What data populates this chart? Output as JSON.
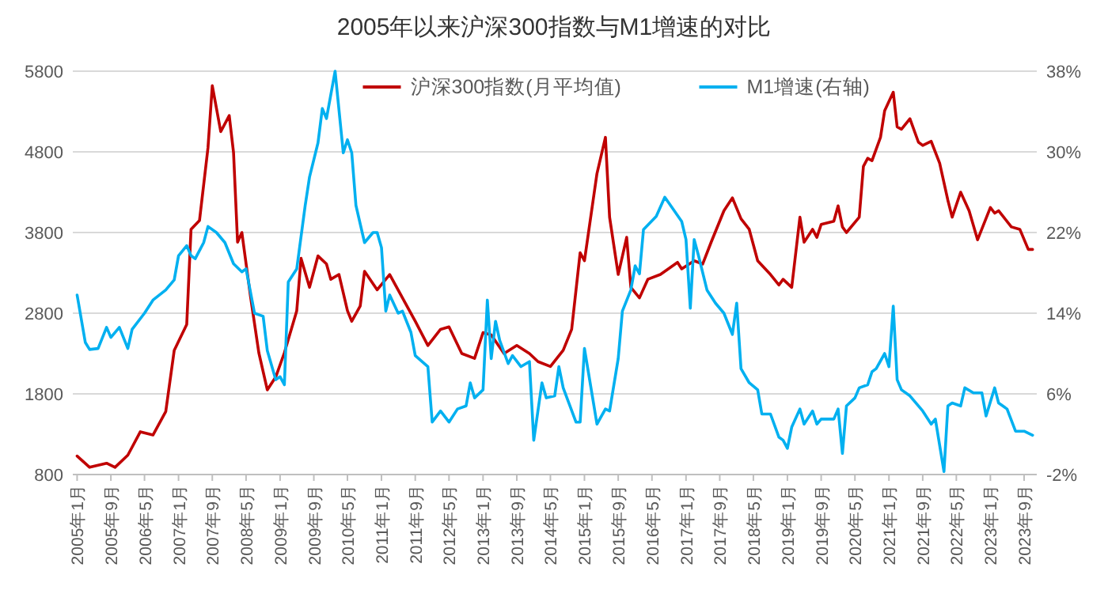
{
  "chart_data": {
    "type": "line",
    "title": "2005年以来沪深300指数与M1增速的对比",
    "xlim": [
      "2004-12",
      "2023-12"
    ],
    "xticks": [
      {
        "value": "2005-01",
        "label": "2005年1月"
      },
      {
        "value": "2005-09",
        "label": "2005年9月"
      },
      {
        "value": "2006-05",
        "label": "2006年5月"
      },
      {
        "value": "2007-01",
        "label": "2007年1月"
      },
      {
        "value": "2007-09",
        "label": "2007年9月"
      },
      {
        "value": "2008-05",
        "label": "2008年5月"
      },
      {
        "value": "2009-01",
        "label": "2009年1月"
      },
      {
        "value": "2009-09",
        "label": "2009年9月"
      },
      {
        "value": "2010-05",
        "label": "2010年5月"
      },
      {
        "value": "2011-01",
        "label": "2011年1月"
      },
      {
        "value": "2011-09",
        "label": "2011年9月"
      },
      {
        "value": "2012-05",
        "label": "2012年5月"
      },
      {
        "value": "2013-01",
        "label": "2013年1月"
      },
      {
        "value": "2013-09",
        "label": "2013年9月"
      },
      {
        "value": "2014-05",
        "label": "2014年5月"
      },
      {
        "value": "2015-01",
        "label": "2015年1月"
      },
      {
        "value": "2015-09",
        "label": "2015年9月"
      },
      {
        "value": "2016-05",
        "label": "2016年5月"
      },
      {
        "value": "2017-01",
        "label": "2017年1月"
      },
      {
        "value": "2017-09",
        "label": "2017年9月"
      },
      {
        "value": "2018-05",
        "label": "2018年5月"
      },
      {
        "value": "2019-01",
        "label": "2019年1月"
      },
      {
        "value": "2019-09",
        "label": "2019年9月"
      },
      {
        "value": "2020-05",
        "label": "2020年5月"
      },
      {
        "value": "2021-01",
        "label": "2021年1月"
      },
      {
        "value": "2021-09",
        "label": "2021年9月"
      },
      {
        "value": "2022-05",
        "label": "2022年5月"
      },
      {
        "value": "2023-01",
        "label": "2023年1月"
      },
      {
        "value": "2023-09",
        "label": "2023年9月"
      }
    ],
    "ylim": [
      800,
      5800
    ],
    "yticks": [
      800,
      1800,
      2800,
      3800,
      4800,
      5800
    ],
    "y2lim": [
      -2,
      38
    ],
    "y2ticks": [
      {
        "value": -2,
        "label": "-2%"
      },
      {
        "value": 6,
        "label": "6%"
      },
      {
        "value": 14,
        "label": "14%"
      },
      {
        "value": 22,
        "label": "22%"
      },
      {
        "value": 30,
        "label": "30%"
      },
      {
        "value": 38,
        "label": "38%"
      }
    ],
    "grid": "y",
    "legend": "top",
    "marker": "none",
    "line_style": "solid",
    "series": [
      {
        "name": "沪深300指数(月平均值)",
        "color": "#c00000",
        "x": [
          "2005-01",
          "2005-04",
          "2005-08",
          "2005-10",
          "2006-01",
          "2006-04",
          "2006-07",
          "2006-10",
          "2006-12",
          "2007-03",
          "2007-04",
          "2007-06",
          "2007-08",
          "2007-09",
          "2007-11",
          "2008-01",
          "2008-02",
          "2008-03",
          "2008-04",
          "2008-06",
          "2008-08",
          "2008-10",
          "2008-12",
          "2009-02",
          "2009-05",
          "2009-06",
          "2009-08",
          "2009-10",
          "2009-12",
          "2010-01",
          "2010-03",
          "2010-05",
          "2010-06",
          "2010-08",
          "2010-09",
          "2010-12",
          "2011-03",
          "2011-06",
          "2011-09",
          "2011-12",
          "2012-03",
          "2012-05",
          "2012-08",
          "2012-11",
          "2013-01",
          "2013-03",
          "2013-06",
          "2013-09",
          "2013-12",
          "2014-02",
          "2014-05",
          "2014-08",
          "2014-10",
          "2014-12",
          "2015-01",
          "2015-04",
          "2015-06",
          "2015-07",
          "2015-09",
          "2015-11",
          "2015-12",
          "2016-02",
          "2016-04",
          "2016-07",
          "2016-11",
          "2016-12",
          "2017-03",
          "2017-05",
          "2017-07",
          "2017-10",
          "2017-12",
          "2018-02",
          "2018-04",
          "2018-06",
          "2018-09",
          "2018-11",
          "2018-12",
          "2019-02",
          "2019-04",
          "2019-05",
          "2019-07",
          "2019-08",
          "2019-09",
          "2019-12",
          "2020-01",
          "2020-02",
          "2020-03",
          "2020-06",
          "2020-07",
          "2020-08",
          "2020-09",
          "2020-11",
          "2020-12",
          "2021-02",
          "2021-03",
          "2021-04",
          "2021-06",
          "2021-08",
          "2021-09",
          "2021-11",
          "2022-01",
          "2022-03",
          "2022-04",
          "2022-06",
          "2022-08",
          "2022-10",
          "2023-01",
          "2023-02",
          "2023-03",
          "2023-06",
          "2023-08",
          "2023-10",
          "2023-11"
        ],
        "values": [
          1030,
          890,
          940,
          890,
          1040,
          1330,
          1290,
          1580,
          2340,
          2660,
          3840,
          3950,
          4850,
          5620,
          5050,
          5250,
          4790,
          3680,
          3800,
          3020,
          2310,
          1850,
          2010,
          2310,
          2830,
          3480,
          3120,
          3510,
          3410,
          3220,
          3280,
          2830,
          2700,
          2890,
          3320,
          3090,
          3280,
          2990,
          2700,
          2400,
          2600,
          2630,
          2300,
          2240,
          2560,
          2530,
          2300,
          2400,
          2300,
          2200,
          2140,
          2340,
          2600,
          3550,
          3450,
          4530,
          4980,
          3990,
          3280,
          3740,
          3120,
          2990,
          3220,
          3280,
          3430,
          3350,
          3450,
          3410,
          3680,
          4070,
          4230,
          3970,
          3840,
          3450,
          3280,
          3150,
          3220,
          3120,
          3990,
          3680,
          3840,
          3740,
          3900,
          3940,
          4130,
          3870,
          3800,
          3990,
          4620,
          4720,
          4690,
          4980,
          5310,
          5540,
          5110,
          5080,
          5210,
          4920,
          4880,
          4930,
          4660,
          4200,
          3990,
          4300,
          4070,
          3710,
          4110,
          4040,
          4070,
          3870,
          3840,
          3590,
          3590
        ]
      },
      {
        "name": "M1增速(右轴)",
        "color": "#00b0f0",
        "axis": "y2",
        "x": [
          "2005-01",
          "2005-03",
          "2005-04",
          "2005-06",
          "2005-08",
          "2005-09",
          "2005-11",
          "2006-01",
          "2006-02",
          "2006-05",
          "2006-07",
          "2006-10",
          "2006-12",
          "2007-01",
          "2007-03",
          "2007-04",
          "2007-05",
          "2007-07",
          "2007-08",
          "2007-10",
          "2007-12",
          "2008-02",
          "2008-04",
          "2008-05",
          "2008-07",
          "2008-09",
          "2008-10",
          "2008-12",
          "2009-01",
          "2009-02",
          "2009-03",
          "2009-05",
          "2009-07",
          "2009-08",
          "2009-10",
          "2009-11",
          "2009-12",
          "2010-02",
          "2010-04",
          "2010-05",
          "2010-06",
          "2010-07",
          "2010-09",
          "2010-11",
          "2010-12",
          "2011-01",
          "2011-02",
          "2011-03",
          "2011-05",
          "2011-06",
          "2011-08",
          "2011-09",
          "2011-12",
          "2012-01",
          "2012-03",
          "2012-05",
          "2012-07",
          "2012-09",
          "2012-10",
          "2012-11",
          "2013-01",
          "2013-02",
          "2013-03",
          "2013-04",
          "2013-05",
          "2013-07",
          "2013-08",
          "2013-10",
          "2013-12",
          "2014-01",
          "2014-03",
          "2014-04",
          "2014-06",
          "2014-07",
          "2014-08",
          "2014-11",
          "2014-12",
          "2015-01",
          "2015-03",
          "2015-04",
          "2015-06",
          "2015-07",
          "2015-09",
          "2015-10",
          "2015-12",
          "2016-01",
          "2016-02",
          "2016-03",
          "2016-06",
          "2016-08",
          "2016-09",
          "2016-12",
          "2017-01",
          "2017-02",
          "2017-03",
          "2017-04",
          "2017-06",
          "2017-08",
          "2017-10",
          "2017-12",
          "2018-01",
          "2018-02",
          "2018-04",
          "2018-06",
          "2018-07",
          "2018-09",
          "2018-11",
          "2018-12",
          "2019-01",
          "2019-02",
          "2019-04",
          "2019-05",
          "2019-07",
          "2019-08",
          "2019-09",
          "2019-12",
          "2020-01",
          "2020-02",
          "2020-03",
          "2020-05",
          "2020-06",
          "2020-08",
          "2020-09",
          "2020-10",
          "2020-12",
          "2021-01",
          "2021-02",
          "2021-03",
          "2021-04",
          "2021-06",
          "2021-09",
          "2021-11",
          "2021-12",
          "2022-02",
          "2022-03",
          "2022-04",
          "2022-06",
          "2022-07",
          "2022-09",
          "2022-11",
          "2022-12",
          "2023-02",
          "2023-03",
          "2023-05",
          "2023-07",
          "2023-09",
          "2023-11"
        ],
        "values": [
          15.8,
          11.1,
          10.4,
          10.5,
          12.6,
          11.6,
          12.6,
          10.5,
          12.4,
          14,
          15.3,
          16.3,
          17.3,
          19.7,
          20.7,
          19.7,
          19.4,
          21,
          22.6,
          22,
          21,
          18.9,
          18.1,
          18.4,
          14,
          13.7,
          10.3,
          7.4,
          7.7,
          6.9,
          17.1,
          18.4,
          24.7,
          27.5,
          30.9,
          34.3,
          33.3,
          38,
          29.9,
          31.2,
          29.9,
          24.7,
          21,
          22,
          22,
          20.5,
          14.2,
          15.8,
          14,
          14.2,
          12.1,
          9.8,
          8.7,
          3.2,
          4.3,
          3.2,
          4.5,
          4.8,
          7.1,
          5.6,
          6.4,
          15.3,
          9.5,
          13.2,
          11.3,
          9,
          9.8,
          8.7,
          9.2,
          1.4,
          7.1,
          5.6,
          5.8,
          8.7,
          6.6,
          3.2,
          3.2,
          10.5,
          5.6,
          3,
          4.5,
          4.3,
          9.5,
          14.2,
          16.3,
          18.7,
          17.9,
          22.3,
          23.6,
          25.5,
          24.9,
          23.1,
          21.3,
          14.5,
          21.3,
          19.7,
          16.3,
          15,
          14,
          11.9,
          15,
          8.5,
          7.1,
          6.4,
          4,
          4,
          1.7,
          1.4,
          0.6,
          2.7,
          4.5,
          3,
          4.3,
          3,
          3.5,
          3.5,
          4.5,
          0.1,
          4.8,
          5.6,
          6.6,
          6.9,
          8.2,
          8.5,
          10,
          8.7,
          14.7,
          7.4,
          6.4,
          5.8,
          4.3,
          3,
          3.5,
          -1.7,
          4.8,
          5.1,
          4.8,
          6.6,
          6.1,
          6.1,
          3.8,
          6.6,
          5.1,
          4.5,
          2.3,
          2.3,
          1.9
        ]
      }
    ]
  }
}
